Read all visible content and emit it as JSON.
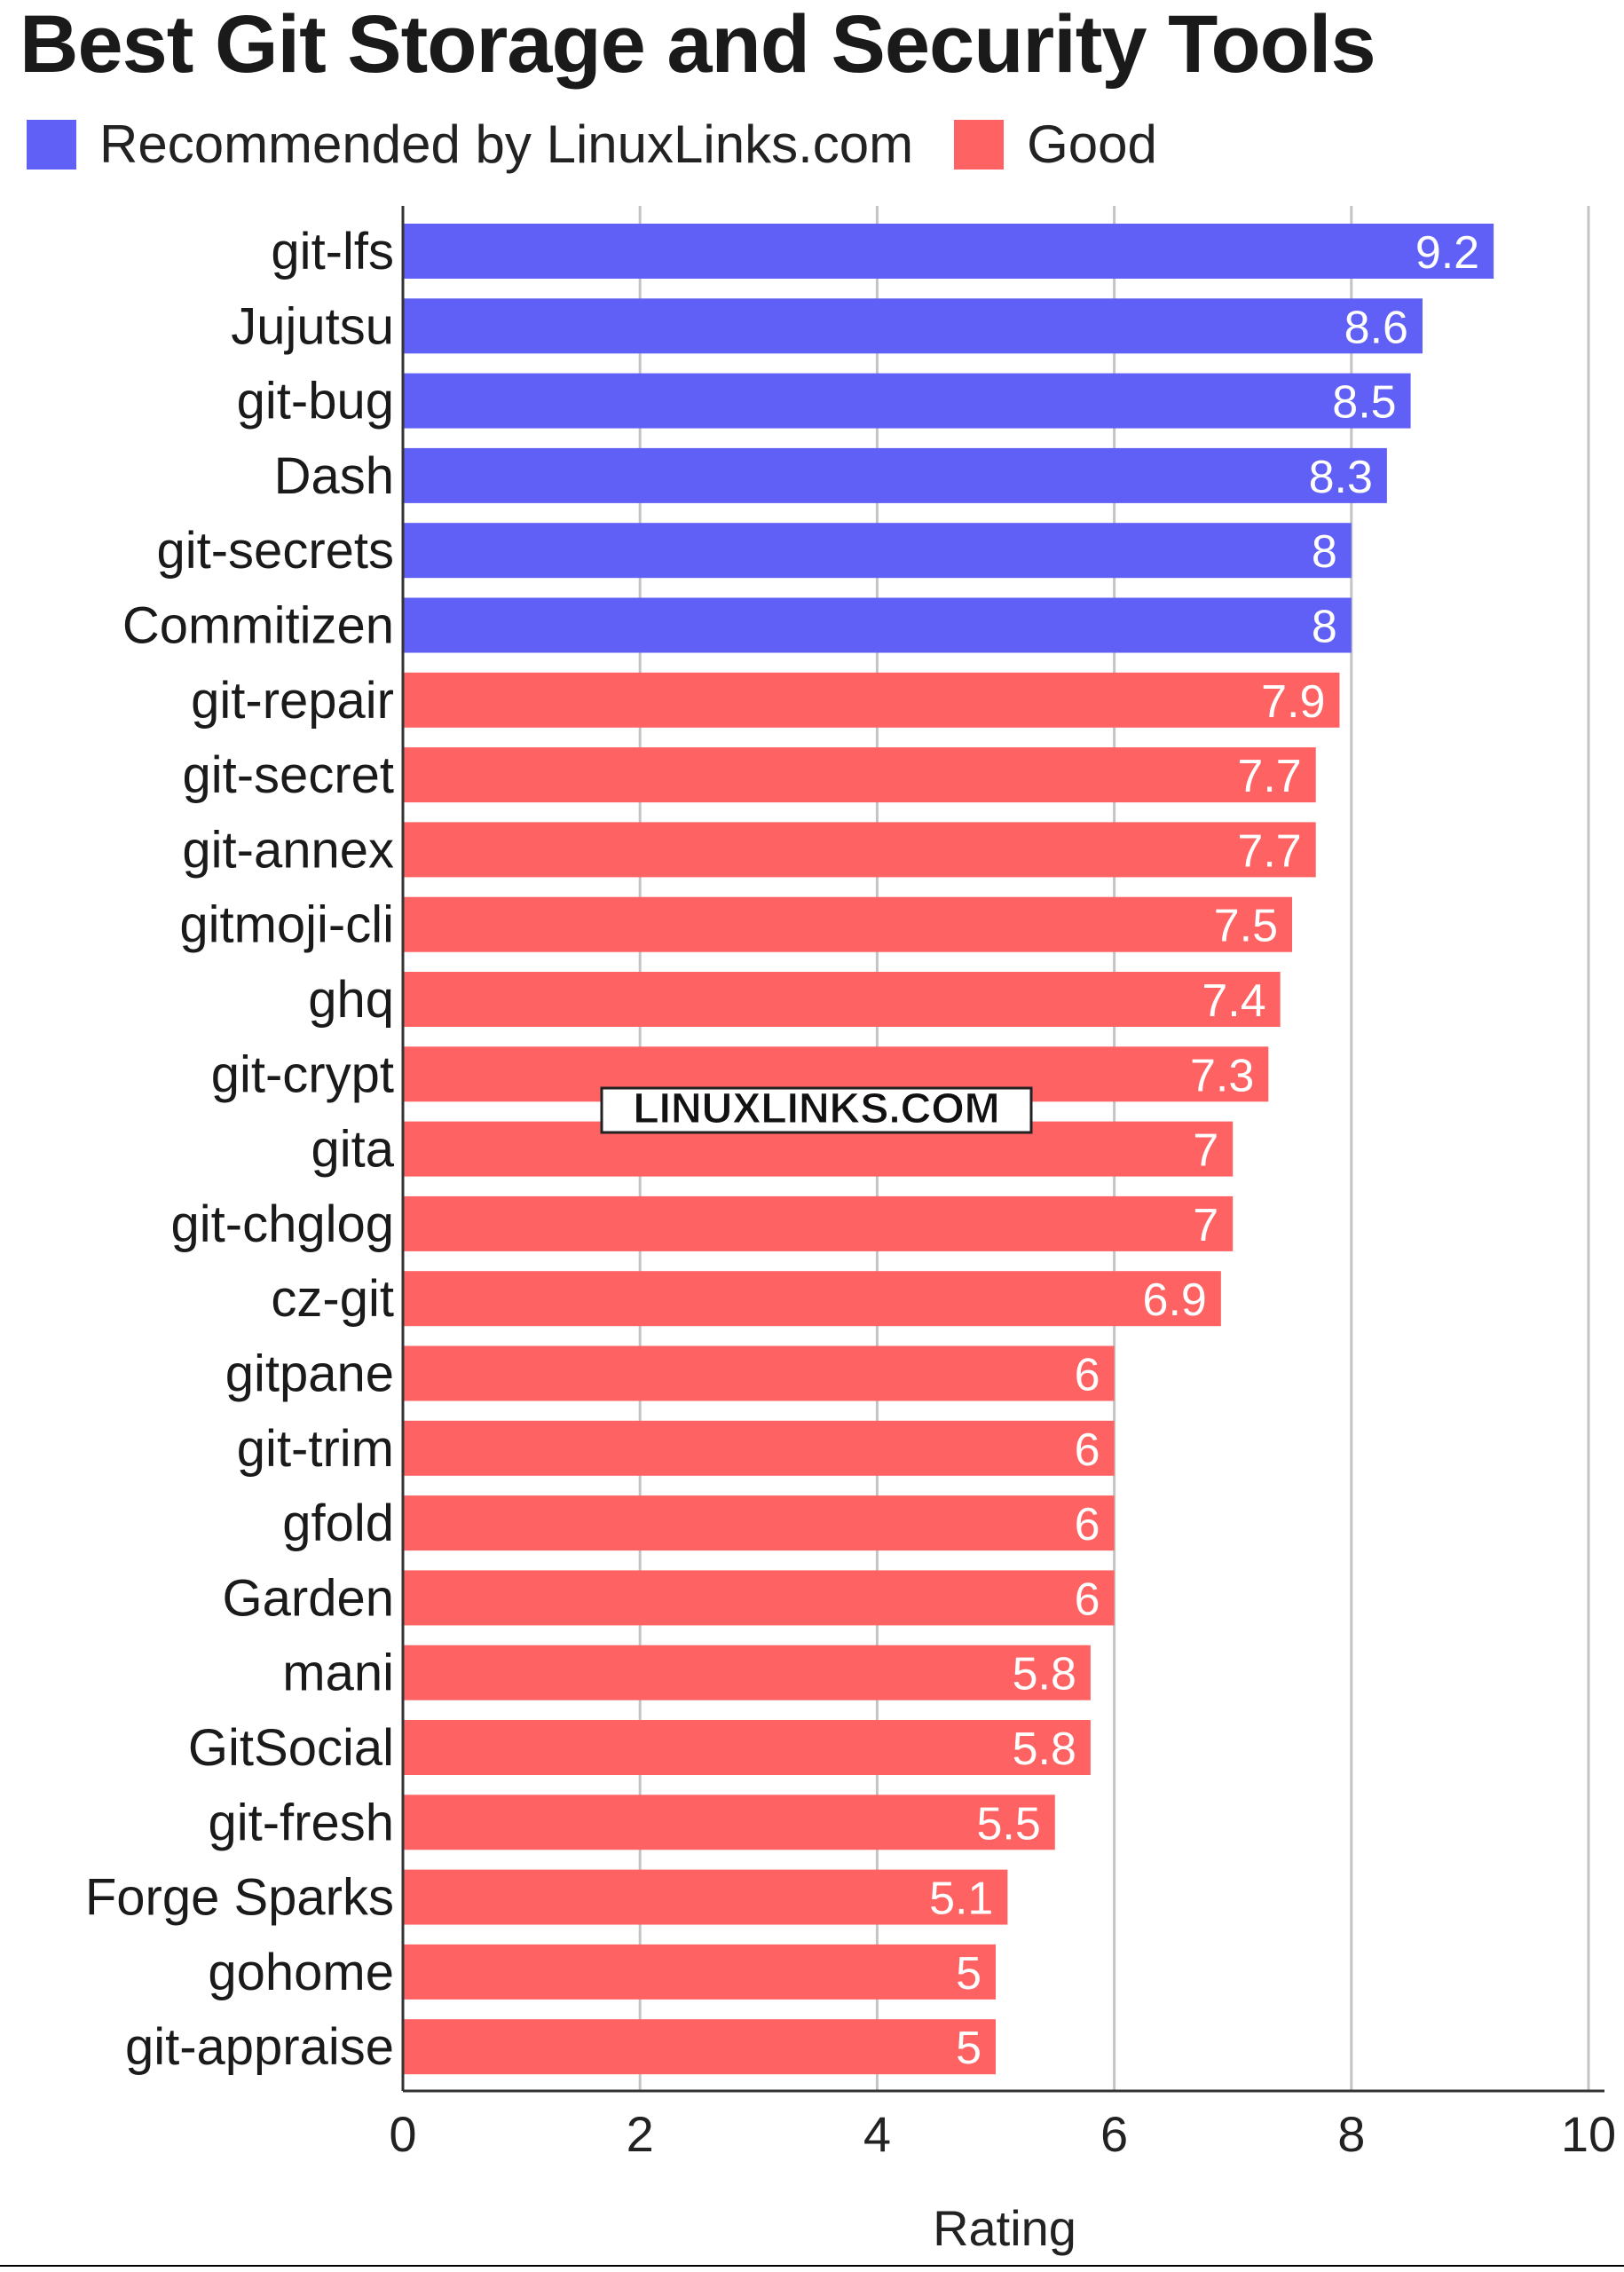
{
  "title": "Best Git Storage and Security Tools",
  "legend": [
    {
      "label": "Recommended by LinuxLinks.com",
      "color": "#6060f6"
    },
    {
      "label": "Good",
      "color": "#ff6262"
    }
  ],
  "watermark": "LINUXLINKS.COM",
  "chart_data": {
    "type": "bar",
    "orientation": "horizontal",
    "title": "Best Git Storage and Security Tools",
    "xlabel": "Rating",
    "ylabel": "",
    "xlim": [
      0,
      10
    ],
    "xticks": [
      "0",
      "2",
      "4",
      "6",
      "8",
      "10"
    ],
    "grid": true,
    "legend_position": "top-left",
    "categories": [
      "git-lfs",
      "Jujutsu",
      "git-bug",
      "Dash",
      "git-secrets",
      "Commitizen",
      "git-repair",
      "git-secret",
      "git-annex",
      "gitmoji-cli",
      "ghq",
      "git-crypt",
      "gita",
      "git-chglog",
      "cz-git",
      "gitpane",
      "git-trim",
      "gfold",
      "Garden",
      "mani",
      "GitSocial",
      "git-fresh",
      "Forge Sparks",
      "gohome",
      "git-appraise"
    ],
    "values": [
      9.2,
      8.6,
      8.5,
      8.3,
      8,
      8,
      7.9,
      7.7,
      7.7,
      7.5,
      7.4,
      7.3,
      7,
      7,
      6.9,
      6,
      6,
      6,
      6,
      5.8,
      5.8,
      5.5,
      5.1,
      5,
      5
    ],
    "value_labels": [
      "9.2",
      "8.6",
      "8.5",
      "8.3",
      "8",
      "8",
      "7.9",
      "7.7",
      "7.7",
      "7.5",
      "7.4",
      "7.3",
      "7",
      "7",
      "6.9",
      "6",
      "6",
      "6",
      "6",
      "5.8",
      "5.8",
      "5.5",
      "5.1",
      "5",
      "5"
    ],
    "groups": [
      "Recommended by LinuxLinks.com",
      "Recommended by LinuxLinks.com",
      "Recommended by LinuxLinks.com",
      "Recommended by LinuxLinks.com",
      "Recommended by LinuxLinks.com",
      "Recommended by LinuxLinks.com",
      "Good",
      "Good",
      "Good",
      "Good",
      "Good",
      "Good",
      "Good",
      "Good",
      "Good",
      "Good",
      "Good",
      "Good",
      "Good",
      "Good",
      "Good",
      "Good",
      "Good",
      "Good",
      "Good"
    ],
    "colors": {
      "Recommended by LinuxLinks.com": "#6060f6",
      "Good": "#ff6262"
    }
  }
}
